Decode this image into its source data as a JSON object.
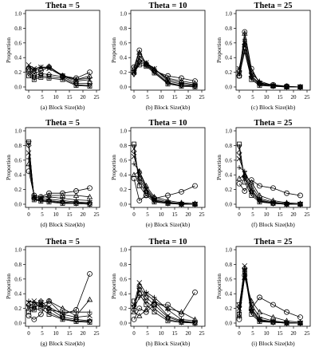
{
  "axes": {
    "ylabel": "Proportion",
    "xlabel_suffix": "Block Size(kb)",
    "xticks": [
      0,
      5,
      10,
      15,
      20,
      25
    ],
    "yticks": [
      "0.0",
      "0.2",
      "0.4",
      "0.6",
      "0.8",
      "1.0"
    ]
  },
  "chart_data": [
    {
      "panel": "a",
      "type": "line",
      "title": "Theta = 5",
      "caption": "(a) Block Size(kb)",
      "xlabel": "Block Size(kb)",
      "ylabel": "Proportion",
      "xlim": [
        0,
        25
      ],
      "ylim": [
        0,
        1
      ],
      "x": [
        0,
        2,
        4.5,
        7.5,
        12.5,
        17.5,
        22.5
      ],
      "series": [
        {
          "marker": "circle",
          "values": [
            0.25,
            0.18,
            0.22,
            0.27,
            0.15,
            0.12,
            0.2
          ]
        },
        {
          "marker": "triangle",
          "values": [
            0.27,
            0.22,
            0.25,
            0.28,
            0.15,
            0.1,
            0.15
          ]
        },
        {
          "marker": "plus",
          "values": [
            0.27,
            0.24,
            0.27,
            0.27,
            0.16,
            0.1,
            0.12
          ]
        },
        {
          "marker": "cross",
          "values": [
            0.3,
            0.25,
            0.27,
            0.25,
            0.15,
            0.08,
            0.1
          ]
        },
        {
          "marker": "diamond",
          "values": [
            0.22,
            0.15,
            0.18,
            0.17,
            0.14,
            0.05,
            0.05
          ]
        },
        {
          "marker": "invtriangle",
          "values": [
            0.18,
            0.12,
            0.15,
            0.14,
            0.12,
            0.03,
            0.02
          ]
        },
        {
          "marker": "square",
          "values": [
            0.15,
            0.1,
            0.13,
            0.12,
            0.1,
            0.02,
            0.01
          ]
        }
      ]
    },
    {
      "panel": "b",
      "type": "line",
      "title": "Theta = 10",
      "caption": "(b) Block Size(kb)",
      "xlabel": "Block Size(kb)",
      "ylabel": "Proportion",
      "xlim": [
        0,
        25
      ],
      "ylim": [
        0,
        1
      ],
      "x": [
        0,
        2,
        4.5,
        7.5,
        12.5,
        17.5,
        22.5
      ],
      "series": [
        {
          "marker": "circle",
          "values": [
            0.27,
            0.5,
            0.3,
            0.22,
            0.15,
            0.12,
            0.08
          ]
        },
        {
          "marker": "triangle",
          "values": [
            0.25,
            0.47,
            0.32,
            0.24,
            0.12,
            0.08,
            0.05
          ]
        },
        {
          "marker": "plus",
          "values": [
            0.22,
            0.42,
            0.33,
            0.25,
            0.1,
            0.06,
            0.03
          ]
        },
        {
          "marker": "cross",
          "values": [
            0.2,
            0.38,
            0.33,
            0.25,
            0.08,
            0.04,
            0.02
          ]
        },
        {
          "marker": "diamond",
          "values": [
            0.18,
            0.35,
            0.32,
            0.22,
            0.06,
            0.02,
            0.01
          ]
        },
        {
          "marker": "invtriangle",
          "values": [
            0.17,
            0.33,
            0.3,
            0.2,
            0.05,
            0.02,
            0.01
          ]
        },
        {
          "marker": "square",
          "values": [
            0.2,
            0.3,
            0.28,
            0.19,
            0.04,
            0.01,
            0.0
          ]
        }
      ]
    },
    {
      "panel": "c",
      "type": "line",
      "title": "Theta = 25",
      "caption": "(c) Block Size(kb)",
      "xlabel": "Block Size(kb)",
      "ylabel": "Proportion",
      "xlim": [
        0,
        25
      ],
      "ylim": [
        0,
        1
      ],
      "x": [
        0,
        2,
        4.5,
        7.5,
        12.5,
        17.5,
        22.5
      ],
      "series": [
        {
          "marker": "circle",
          "values": [
            0.15,
            0.75,
            0.25,
            0.05,
            0.03,
            0.01,
            0.0
          ]
        },
        {
          "marker": "triangle",
          "values": [
            0.18,
            0.73,
            0.22,
            0.06,
            0.02,
            0.01,
            0.0
          ]
        },
        {
          "marker": "plus",
          "values": [
            0.25,
            0.65,
            0.18,
            0.08,
            0.02,
            0.0,
            0.0
          ]
        },
        {
          "marker": "cross",
          "values": [
            0.25,
            0.6,
            0.15,
            0.05,
            0.02,
            0.0,
            0.0
          ]
        },
        {
          "marker": "diamond",
          "values": [
            0.22,
            0.58,
            0.14,
            0.04,
            0.02,
            0.0,
            0.0
          ]
        },
        {
          "marker": "invtriangle",
          "values": [
            0.18,
            0.52,
            0.12,
            0.03,
            0.01,
            0.0,
            0.0
          ]
        },
        {
          "marker": "square",
          "values": [
            0.15,
            0.48,
            0.1,
            0.02,
            0.01,
            0.0,
            0.0
          ]
        }
      ]
    },
    {
      "panel": "d",
      "type": "line",
      "title": "Theta =  5",
      "caption": "(d) Block Size(kb)",
      "xlabel": "Block Size(kb)",
      "ylabel": "Proportion",
      "xlim": [
        0,
        25
      ],
      "ylim": [
        0,
        1
      ],
      "x": [
        0,
        2,
        4.5,
        7.5,
        12.5,
        17.5,
        22.5
      ],
      "series": [
        {
          "marker": "circle",
          "values": [
            0.45,
            0.12,
            0.1,
            0.15,
            0.15,
            0.18,
            0.22
          ]
        },
        {
          "marker": "triangle",
          "values": [
            0.55,
            0.1,
            0.08,
            0.12,
            0.12,
            0.12,
            0.1
          ]
        },
        {
          "marker": "plus",
          "values": [
            0.62,
            0.12,
            0.1,
            0.1,
            0.08,
            0.06,
            0.05
          ]
        },
        {
          "marker": "cross",
          "values": [
            0.7,
            0.1,
            0.08,
            0.07,
            0.05,
            0.03,
            0.02
          ]
        },
        {
          "marker": "diamond",
          "values": [
            0.8,
            0.08,
            0.06,
            0.05,
            0.03,
            0.02,
            0.01
          ]
        },
        {
          "marker": "invtriangle",
          "values": [
            0.83,
            0.07,
            0.05,
            0.04,
            0.02,
            0.01,
            0.0
          ]
        },
        {
          "marker": "square",
          "values": [
            0.85,
            0.06,
            0.04,
            0.03,
            0.01,
            0.01,
            0.0
          ]
        }
      ]
    },
    {
      "panel": "e",
      "type": "line",
      "title": "Theta = 10",
      "caption": "(e) Block Size(kb)",
      "xlabel": "Block Size(kb)",
      "ylabel": "Proportion",
      "xlim": [
        0,
        25
      ],
      "ylim": [
        0,
        1
      ],
      "x": [
        0,
        2,
        4.5,
        7.5,
        12.5,
        17.5,
        22.5
      ],
      "series": [
        {
          "marker": "circle",
          "values": [
            0.35,
            0.05,
            0.12,
            0.08,
            0.12,
            0.17,
            0.25
          ]
        },
        {
          "marker": "triangle",
          "values": [
            0.4,
            0.45,
            0.25,
            0.1,
            0.05,
            0.02,
            0.01
          ]
        },
        {
          "marker": "plus",
          "values": [
            0.55,
            0.45,
            0.22,
            0.08,
            0.03,
            0.01,
            0.0
          ]
        },
        {
          "marker": "cross",
          "values": [
            0.65,
            0.4,
            0.2,
            0.06,
            0.02,
            0.0,
            0.0
          ]
        },
        {
          "marker": "diamond",
          "values": [
            0.72,
            0.35,
            0.18,
            0.05,
            0.02,
            0.0,
            0.0
          ]
        },
        {
          "marker": "invtriangle",
          "values": [
            0.78,
            0.3,
            0.15,
            0.04,
            0.01,
            0.0,
            0.0
          ]
        },
        {
          "marker": "square",
          "values": [
            0.82,
            0.25,
            0.12,
            0.03,
            0.01,
            0.0,
            0.0
          ]
        }
      ]
    },
    {
      "panel": "f",
      "type": "line",
      "title": "Theta = 25",
      "caption": "(f) Block Size(kb)",
      "xlabel": "Block Size(kb)",
      "ylabel": "Proportion",
      "xlim": [
        0,
        25
      ],
      "ylim": [
        0,
        1
      ],
      "x": [
        0,
        2,
        4.5,
        7.5,
        12.5,
        17.5,
        22.5
      ],
      "series": [
        {
          "marker": "circle",
          "values": [
            0.28,
            0.18,
            0.33,
            0.25,
            0.22,
            0.15,
            0.12
          ]
        },
        {
          "marker": "triangle",
          "values": [
            0.35,
            0.4,
            0.3,
            0.12,
            0.05,
            0.02,
            0.01
          ]
        },
        {
          "marker": "plus",
          "values": [
            0.5,
            0.45,
            0.25,
            0.08,
            0.03,
            0.01,
            0.0
          ]
        },
        {
          "marker": "cross",
          "values": [
            0.62,
            0.42,
            0.2,
            0.06,
            0.02,
            0.0,
            0.0
          ]
        },
        {
          "marker": "diamond",
          "values": [
            0.7,
            0.38,
            0.18,
            0.05,
            0.01,
            0.0,
            0.0
          ]
        },
        {
          "marker": "invtriangle",
          "values": [
            0.78,
            0.35,
            0.15,
            0.04,
            0.01,
            0.0,
            0.0
          ]
        },
        {
          "marker": "square",
          "values": [
            0.82,
            0.3,
            0.12,
            0.03,
            0.01,
            0.0,
            0.0
          ]
        }
      ]
    },
    {
      "panel": "g",
      "type": "line",
      "title": "Theta = 5",
      "caption": "(g) Block Size(kb)",
      "xlabel": "Block Size(kb)",
      "ylabel": "Proportion",
      "xlim": [
        0,
        25
      ],
      "ylim": [
        0,
        1
      ],
      "x": [
        0,
        2,
        4.5,
        7.5,
        12.5,
        17.5,
        22.5
      ],
      "series": [
        {
          "marker": "circle",
          "values": [
            0.1,
            0.05,
            0.12,
            0.3,
            0.12,
            0.18,
            0.67
          ]
        },
        {
          "marker": "triangle",
          "values": [
            0.2,
            0.22,
            0.25,
            0.3,
            0.2,
            0.1,
            0.32
          ]
        },
        {
          "marker": "plus",
          "values": [
            0.3,
            0.28,
            0.22,
            0.18,
            0.15,
            0.15,
            0.15
          ]
        },
        {
          "marker": "cross",
          "values": [
            0.28,
            0.3,
            0.25,
            0.22,
            0.12,
            0.08,
            0.1
          ]
        },
        {
          "marker": "diamond",
          "values": [
            0.25,
            0.25,
            0.3,
            0.2,
            0.08,
            0.05,
            0.03
          ]
        },
        {
          "marker": "invtriangle",
          "values": [
            0.22,
            0.2,
            0.28,
            0.15,
            0.06,
            0.03,
            0.02
          ]
        },
        {
          "marker": "square",
          "values": [
            0.15,
            0.18,
            0.2,
            0.12,
            0.05,
            0.02,
            0.01
          ]
        }
      ]
    },
    {
      "panel": "h",
      "type": "line",
      "title": "Theta = 10",
      "caption": "(h) Block Size(kb)",
      "xlabel": "Block Size(kb)",
      "ylabel": "Proportion",
      "xlim": [
        0,
        25
      ],
      "ylim": [
        0,
        1
      ],
      "x": [
        0,
        2,
        4.5,
        7.5,
        12.5,
        17.5,
        22.5
      ],
      "series": [
        {
          "marker": "circle",
          "values": [
            0.05,
            0.2,
            0.15,
            0.25,
            0.25,
            0.12,
            0.42
          ]
        },
        {
          "marker": "triangle",
          "values": [
            0.15,
            0.1,
            0.18,
            0.3,
            0.2,
            0.15,
            0.05
          ]
        },
        {
          "marker": "plus",
          "values": [
            0.2,
            0.35,
            0.42,
            0.35,
            0.18,
            0.05,
            0.03
          ]
        },
        {
          "marker": "cross",
          "values": [
            0.25,
            0.55,
            0.4,
            0.3,
            0.1,
            0.03,
            0.01
          ]
        },
        {
          "marker": "diamond",
          "values": [
            0.18,
            0.5,
            0.35,
            0.25,
            0.08,
            0.02,
            0.01
          ]
        },
        {
          "marker": "invtriangle",
          "values": [
            0.22,
            0.45,
            0.3,
            0.2,
            0.05,
            0.01,
            0.0
          ]
        },
        {
          "marker": "square",
          "values": [
            0.3,
            0.4,
            0.25,
            0.15,
            0.03,
            0.01,
            0.0
          ]
        }
      ]
    },
    {
      "panel": "i",
      "type": "line",
      "title": "Theta = 25",
      "caption": "(i) Block Size(kb)",
      "xlabel": "Block Size(kb)",
      "ylabel": "Proportion",
      "xlim": [
        0,
        25
      ],
      "ylim": [
        0,
        1
      ],
      "x": [
        0,
        2,
        4.5,
        7.5,
        12.5,
        17.5,
        22.5
      ],
      "series": [
        {
          "marker": "circle",
          "values": [
            0.05,
            0.65,
            0.2,
            0.35,
            0.25,
            0.15,
            0.08
          ]
        },
        {
          "marker": "triangle",
          "values": [
            0.1,
            0.62,
            0.3,
            0.15,
            0.08,
            0.03,
            0.01
          ]
        },
        {
          "marker": "plus",
          "values": [
            0.15,
            0.7,
            0.25,
            0.08,
            0.03,
            0.01,
            0.0
          ]
        },
        {
          "marker": "cross",
          "values": [
            0.2,
            0.78,
            0.2,
            0.05,
            0.02,
            0.0,
            0.0
          ]
        },
        {
          "marker": "diamond",
          "values": [
            0.22,
            0.75,
            0.18,
            0.04,
            0.01,
            0.0,
            0.0
          ]
        },
        {
          "marker": "invtriangle",
          "values": [
            0.25,
            0.72,
            0.15,
            0.03,
            0.01,
            0.0,
            0.0
          ]
        },
        {
          "marker": "square",
          "values": [
            0.12,
            0.7,
            0.12,
            0.02,
            0.01,
            0.0,
            0.0
          ]
        }
      ]
    }
  ]
}
